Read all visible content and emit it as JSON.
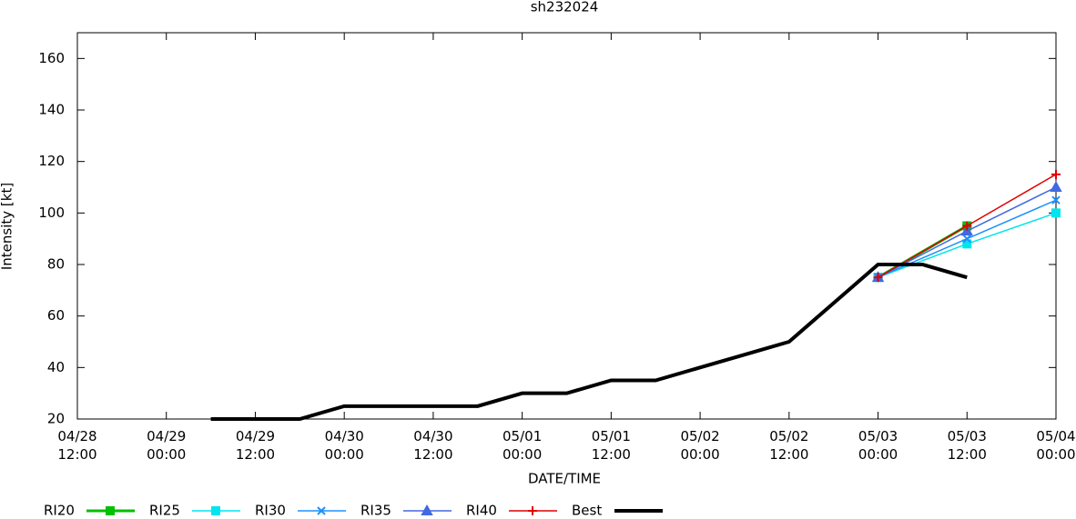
{
  "chart_data": {
    "type": "line",
    "title": "sh232024",
    "xlabel": "DATE/TIME",
    "ylabel": "Intensity [kt]",
    "xlim": [
      "04/28 12:00",
      "05/04 00:00"
    ],
    "xticks": [
      "04/28 12:00",
      "04/29 00:00",
      "04/29 12:00",
      "04/30 00:00",
      "04/30 12:00",
      "05/01 00:00",
      "05/01 12:00",
      "05/02 00:00",
      "05/02 12:00",
      "05/03 00:00",
      "05/03 12:00",
      "05/04 00:00"
    ],
    "ylim": [
      20,
      170
    ],
    "yticks": [
      20,
      40,
      60,
      80,
      100,
      120,
      140,
      160
    ],
    "series": [
      {
        "name": "RI20",
        "color": "#00c000",
        "marker": "square",
        "x": [
          "05/03 00:00",
          "05/03 12:00"
        ],
        "values": [
          75,
          95
        ]
      },
      {
        "name": "RI25",
        "color": "#00e5ee",
        "marker": "square",
        "x": [
          "05/03 00:00",
          "05/03 12:00",
          "05/04 00:00"
        ],
        "values": [
          75,
          88,
          100
        ]
      },
      {
        "name": "RI30",
        "color": "#1e90ff",
        "marker": "x",
        "x": [
          "05/03 00:00",
          "05/03 12:00",
          "05/04 00:00"
        ],
        "values": [
          75,
          90,
          105
        ]
      },
      {
        "name": "RI35",
        "color": "#4169e1",
        "marker": "triangle",
        "x": [
          "05/03 00:00",
          "05/03 12:00",
          "05/04 00:00"
        ],
        "values": [
          75,
          93,
          110
        ]
      },
      {
        "name": "RI40",
        "color": "#e00000",
        "marker": "plus",
        "x": [
          "05/03 00:00",
          "05/03 12:00",
          "05/04 00:00"
        ],
        "values": [
          75,
          95,
          115
        ]
      },
      {
        "name": "Best",
        "color": "#000000",
        "marker": "none",
        "x": [
          "04/29 06:00",
          "04/29 12:00",
          "04/29 18:00",
          "04/30 00:00",
          "04/30 06:00",
          "04/30 12:00",
          "04/30 18:00",
          "05/01 00:00",
          "05/01 06:00",
          "05/01 12:00",
          "05/01 18:00",
          "05/02 00:00",
          "05/02 06:00",
          "05/02 12:00",
          "05/02 18:00",
          "05/03 00:00",
          "05/03 06:00",
          "05/03 12:00"
        ],
        "values": [
          20,
          20,
          20,
          25,
          25,
          25,
          25,
          30,
          30,
          35,
          35,
          40,
          45,
          50,
          65,
          80,
          80,
          75
        ]
      }
    ]
  }
}
